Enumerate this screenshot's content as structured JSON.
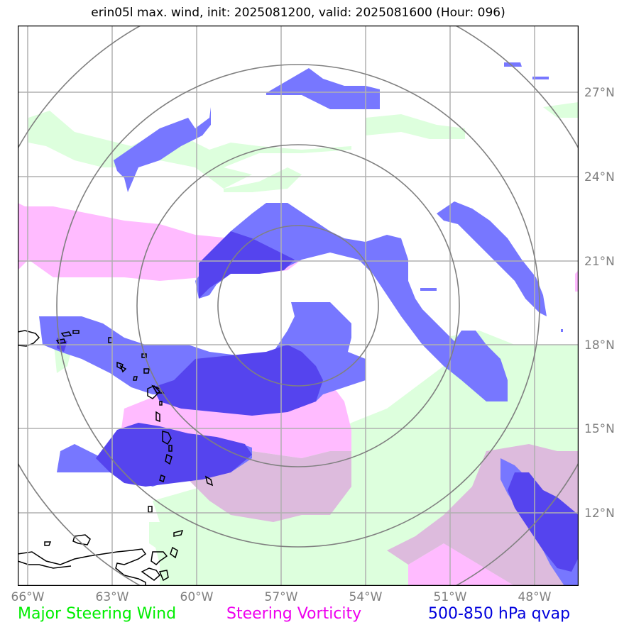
{
  "title": "erin05l max. wind, init: 2025081200, valid: 2025081600 (Hour: 096)",
  "lon_labels": [
    "66°W",
    "63°W",
    "60°W",
    "57°W",
    "54°W",
    "51°W",
    "48°W"
  ],
  "lat_labels": [
    "27°N",
    "24°N",
    "21°N",
    "18°N",
    "15°N",
    "12°N"
  ],
  "legend": [
    {
      "label": "Major Steering Wind",
      "color": "#00ee00"
    },
    {
      "label": "Steering Vorticity",
      "color": "#ee00ee"
    },
    {
      "label": "500-850 hPa qvap",
      "color": "#0000dd"
    }
  ],
  "colors": {
    "steering_wind_fill": "#ddffdd",
    "steering_vorticity_fill": "#ffbbff",
    "qvap_fill": "#7777ff",
    "qvap_strong_fill": "#5544ee",
    "vort_qvap_overlap_fill": "#ddbbdd",
    "range_ring": "#808080",
    "gridline": "#b0b0b0",
    "coastline": "#000000"
  }
}
